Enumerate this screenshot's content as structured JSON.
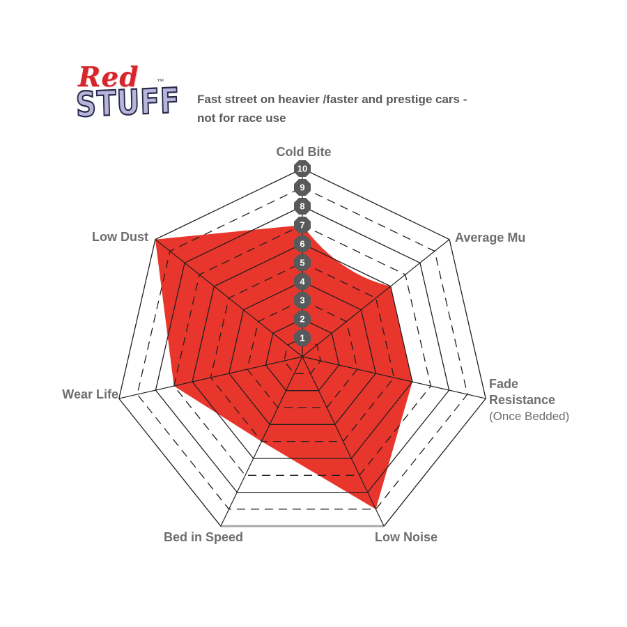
{
  "logo": {
    "word_red": "Red",
    "word_stuff": "STUFF",
    "trademark": "™"
  },
  "header": {
    "title_line1": "Fast street on heavier /faster and prestige cars -",
    "title_line2": "not for race use"
  },
  "chart_data": {
    "type": "radar",
    "title": "Fast street on heavier /faster and prestige cars - not for race use",
    "categories": [
      "Cold Bite",
      "Average Mu",
      "Fade Resistance (Once Bedded)",
      "Low Noise",
      "Bed in Speed",
      "Wear Life",
      "Low Dust"
    ],
    "values": [
      7,
      6,
      6,
      9,
      5,
      7,
      10
    ],
    "axes": [
      {
        "label": "Cold Bite",
        "lines": [
          "Cold Bite"
        ],
        "value": 7
      },
      {
        "label": "Average Mu",
        "lines": [
          "Average Mu"
        ],
        "value": 6
      },
      {
        "label": "Fade Resistance (Once Bedded)",
        "lines": [
          "Fade",
          "Resistance",
          "(Once Bedded)"
        ],
        "value": 6
      },
      {
        "label": "Low Noise",
        "lines": [
          "Low Noise"
        ],
        "value": 9
      },
      {
        "label": "Bed in Speed",
        "lines": [
          "Bed in Speed"
        ],
        "value": 5
      },
      {
        "label": "Wear Life",
        "lines": [
          "Wear Life"
        ],
        "value": 7
      },
      {
        "label": "Low Dust",
        "lines": [
          "Low Dust"
        ],
        "value": 10
      }
    ],
    "scale": {
      "min": 0,
      "max": 10,
      "ticks": [
        "1",
        "2",
        "3",
        "4",
        "5",
        "6",
        "7",
        "8",
        "9",
        "10"
      ]
    },
    "grid": "heptagonal rings; even rings solid, odd rings dashed",
    "legend": "none",
    "colors": {
      "fill": "#e8362c",
      "grid_line": "#231f20",
      "label": "#6d6e71",
      "badge_fill": "#58595b",
      "badge_text": "#ffffff",
      "bottom_edge": "#a7a9ac",
      "logo_red": "#d6252b",
      "logo_lavender": "#b7b5da"
    }
  }
}
